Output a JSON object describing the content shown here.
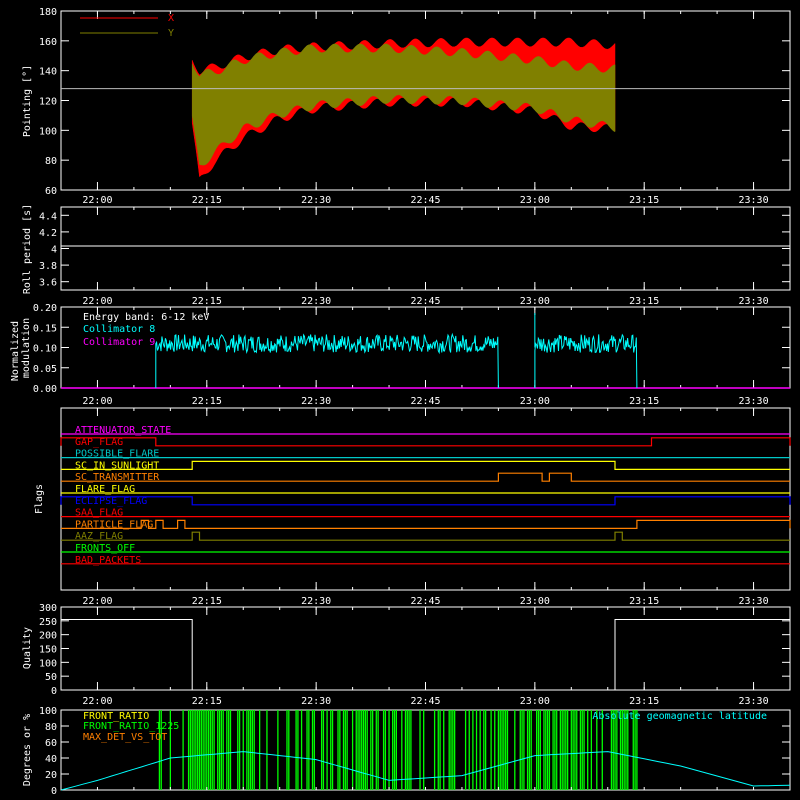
{
  "chart_data": [
    {
      "type": "area",
      "ylabel": "Pointing [°]",
      "xlim": [
        "21:55",
        "23:35"
      ],
      "ylim": [
        60,
        180
      ],
      "yticks": [
        60,
        80,
        100,
        120,
        140,
        160,
        180
      ],
      "xticks": [
        "22:00",
        "22:15",
        "22:30",
        "22:45",
        "23:00",
        "23:15",
        "23:30"
      ],
      "reference_line": 128,
      "legend": [
        {
          "name": "X",
          "color": "#ff0000"
        },
        {
          "name": "Y",
          "color": "#808000"
        }
      ],
      "series": [
        {
          "name": "X",
          "color": "#ff0000",
          "x": [
            "22:13",
            "22:14",
            "22:16",
            "22:20",
            "22:25",
            "22:30",
            "22:40",
            "22:50",
            "23:00",
            "23:05",
            "23:11"
          ],
          "upper": [
            150,
            143,
            145,
            152,
            157,
            159,
            161,
            162,
            162,
            162,
            160
          ],
          "lower": [
            102,
            63,
            76,
            92,
            105,
            112,
            116,
            116,
            110,
            100,
            98
          ]
        },
        {
          "name": "Y",
          "color": "#808000",
          "x": [
            "22:13",
            "22:14",
            "22:16",
            "22:20",
            "22:25",
            "22:30",
            "22:40",
            "22:50",
            "23:00",
            "23:05",
            "23:11"
          ],
          "upper": [
            150,
            140,
            142,
            150,
            155,
            158,
            158,
            155,
            150,
            146,
            144
          ],
          "lower": [
            104,
            73,
            82,
            98,
            108,
            114,
            118,
            117,
            112,
            104,
            99
          ]
        }
      ]
    },
    {
      "type": "line",
      "ylabel": "Roll period [s]",
      "ylim": [
        3.5,
        4.5
      ],
      "yticks": [
        3.6,
        3.8,
        4.0,
        4.2,
        4.4
      ],
      "xticks": [
        "22:00",
        "22:15",
        "22:30",
        "22:45",
        "23:00",
        "23:15",
        "23:30"
      ],
      "series": [
        {
          "x": [
            "21:55",
            "23:35"
          ],
          "values": [
            4.03,
            4.03
          ],
          "color": "#ffffff"
        }
      ]
    },
    {
      "type": "line",
      "ylabel": "Normalized modulation",
      "ylim": [
        0,
        0.2
      ],
      "yticks": [
        "0.00",
        "0.05",
        "0.10",
        "0.15",
        "0.20"
      ],
      "xticks": [
        "22:00",
        "22:15",
        "22:30",
        "22:45",
        "23:00",
        "23:15",
        "23:30"
      ],
      "annotation": "Energy band: 6-12 keV",
      "legend": [
        {
          "name": "Collimator 8",
          "color": "#00ffff"
        },
        {
          "name": "Collimator 9",
          "color": "#ff00ff"
        }
      ],
      "series": [
        {
          "name": "Collimator 8",
          "color": "#00ffff",
          "segments": [
            {
              "start": "22:08",
              "end": "22:55",
              "mean": 0.11
            },
            {
              "start": "23:00",
              "end": "23:14",
              "mean": 0.11
            }
          ],
          "spike": {
            "x": "23:00",
            "value": 0.185
          }
        },
        {
          "name": "Collimator 9",
          "color": "#ff00ff",
          "values": [
            0,
            0
          ],
          "x": [
            "21:55",
            "23:35"
          ]
        }
      ]
    },
    {
      "type": "table",
      "ylabel": "Flags",
      "xticks": [
        "22:00",
        "22:15",
        "22:30",
        "22:45",
        "23:00",
        "23:15",
        "23:30"
      ],
      "flags": [
        {
          "name": "ATTENUATOR_STATE",
          "color": "#ff00ff",
          "high": []
        },
        {
          "name": "GAP_FLAG",
          "color": "#ff0000",
          "high": [
            [
              "21:55",
              "22:08"
            ],
            [
              "23:16",
              "23:35"
            ]
          ]
        },
        {
          "name": "POSSIBLE_FLARE",
          "color": "#00c8c8",
          "high": []
        },
        {
          "name": "SC_IN_SUNLIGHT",
          "color": "#ffff00",
          "high": [
            [
              "22:13",
              "23:11"
            ]
          ]
        },
        {
          "name": "SC_TRANSMITTER",
          "color": "#ff8000",
          "high": [
            [
              "22:55",
              "23:01"
            ],
            [
              "23:02",
              "23:05"
            ]
          ]
        },
        {
          "name": "FLARE_FLAG",
          "color": "#ffff00",
          "high": []
        },
        {
          "name": "ECLIPSE_FLAG",
          "color": "#0000ff",
          "high": [
            [
              "21:55",
              "22:13"
            ],
            [
              "23:11",
              "23:35"
            ]
          ]
        },
        {
          "name": "SAA_FLAG",
          "color": "#ff0000",
          "high": []
        },
        {
          "name": "PARTICLE_FLAG",
          "color": "#ff8000",
          "high": [
            [
              "22:06",
              "22:07"
            ],
            [
              "22:08",
              "22:09"
            ],
            [
              "22:11",
              "22:12"
            ],
            [
              "23:14",
              "23:35"
            ]
          ]
        },
        {
          "name": "AAZ_FLAG",
          "color": "#808000",
          "high": [
            [
              "22:13",
              "22:14"
            ],
            [
              "23:11",
              "23:12"
            ]
          ]
        },
        {
          "name": "FRONTS_OFF",
          "color": "#00ff00",
          "high": []
        },
        {
          "name": "BAD_PACKETS",
          "color": "#ff0000",
          "high": []
        }
      ]
    },
    {
      "type": "line",
      "ylabel": "Quality",
      "ylim": [
        0,
        300
      ],
      "yticks": [
        0,
        50,
        100,
        150,
        200,
        250,
        300
      ],
      "xticks": [
        "22:00",
        "22:15",
        "22:30",
        "22:45",
        "23:00",
        "23:15",
        "23:30"
      ],
      "series": [
        {
          "color": "#ffffff",
          "x": [
            "21:55",
            "22:13",
            "22:13",
            "23:11",
            "23:11",
            "23:35"
          ],
          "values": [
            255,
            255,
            0,
            0,
            255,
            255
          ]
        }
      ]
    },
    {
      "type": "area",
      "ylabel": "Degrees or %",
      "ylim": [
        0,
        100
      ],
      "yticks": [
        0,
        20,
        40,
        60,
        80,
        100
      ],
      "legend": [
        {
          "name": "FRONT_RATIO",
          "color": "#ffff00"
        },
        {
          "name": "FRONT_RATIO_1225",
          "color": "#00ff00"
        },
        {
          "name": "MAX_DET_VS_TOT",
          "color": "#ff8000"
        }
      ],
      "annotation": "Absolute geomagnetic latitude",
      "series": [
        {
          "name": "FRONT_RATIO_1225",
          "color": "#00ff00",
          "x": [
            "22:08",
            "23:14"
          ],
          "values": [
            100,
            100
          ]
        },
        {
          "name": "Absolute geomagnetic latitude",
          "color": "#00ffff",
          "x": [
            "21:55",
            "22:00",
            "22:10",
            "22:20",
            "22:30",
            "22:40",
            "22:50",
            "23:00",
            "23:10",
            "23:20",
            "23:30",
            "23:35"
          ],
          "values": [
            0,
            12,
            40,
            48,
            38,
            12,
            18,
            43,
            48,
            30,
            5,
            6
          ]
        }
      ]
    }
  ]
}
